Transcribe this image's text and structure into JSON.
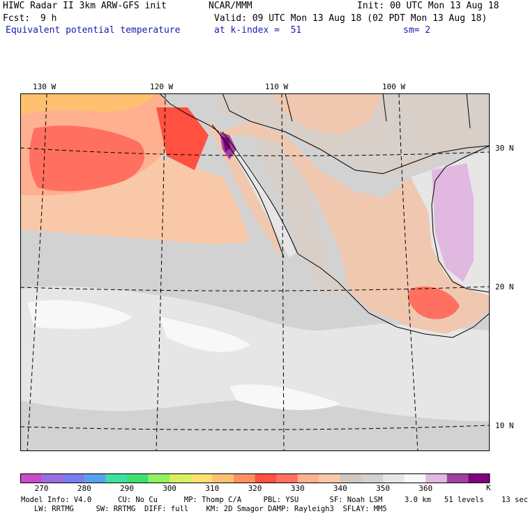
{
  "header": {
    "title": "HIWC Radar II 3km ARW-GFS init",
    "org": "NCAR/MMM",
    "init": "Init: 00 UTC Mon 13 Aug 18",
    "fcst_label": "Fcst:",
    "fcst_value": "9 h",
    "valid": "Valid: 09 UTC Mon 13 Aug 18 (02 PDT Mon 13 Aug 18)",
    "field": "Equivalent potential temperature",
    "level": "at k-index =  51",
    "smooth": "sm= 2"
  },
  "map": {
    "lon_labels": [
      "130 W",
      "120 W",
      "110 W",
      "100 W"
    ],
    "lat_labels": [
      "30 N",
      "20 N",
      "10 N"
    ]
  },
  "colorbar": {
    "unit": "K",
    "labels": [
      "270",
      "280",
      "290",
      "300",
      "310",
      "320",
      "330",
      "340",
      "350",
      "360"
    ],
    "colors": [
      "#c84bc8",
      "#9b6ee0",
      "#7a7ef0",
      "#5aa0f0",
      "#3ee0a0",
      "#40e070",
      "#90f060",
      "#d8f060",
      "#ffe070",
      "#ffc070",
      "#ff9060",
      "#ff5040",
      "#ff7060",
      "#ffb090",
      "#f8c8a8",
      "#d0c8c0",
      "#d2d2d2",
      "#e6e6e6",
      "#f8f8f8",
      "#e0b8e0",
      "#a040a0",
      "#800080"
    ]
  },
  "footer": {
    "line1": "Model Info: V4.0      CU: No Cu      MP: Thomp C/A     PBL: YSU       SF: Noah LSM     3.0 km   51 levels    13 sec",
    "line2": "   LW: RRTMG     SW: RRTMG  DIFF: full    KM: 2D Smagor DAMP: Rayleigh3  SFLAY: MM5"
  }
}
